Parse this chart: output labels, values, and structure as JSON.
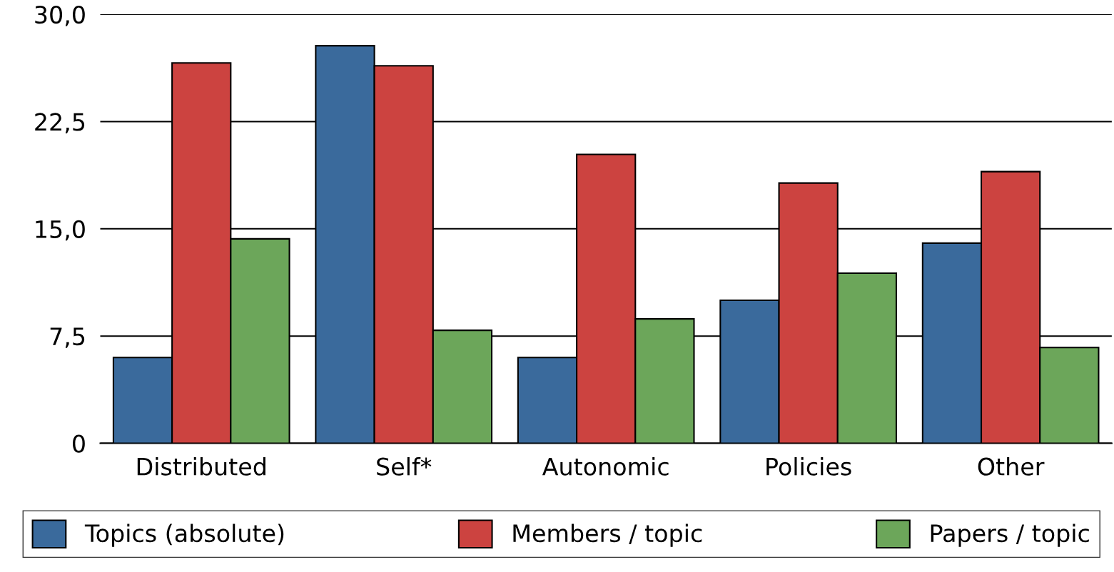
{
  "chart_data": {
    "type": "bar",
    "categories": [
      "Distributed",
      "Self*",
      "Autonomic",
      "Policies",
      "Other"
    ],
    "series": [
      {
        "name": "Topics (absolute)",
        "color": "#3a6a9c",
        "values": [
          6,
          27.8,
          6,
          10,
          14
        ]
      },
      {
        "name": "Members / topic",
        "color": "#cc4340",
        "values": [
          26.6,
          26.4,
          20.2,
          18.2,
          19.0
        ]
      },
      {
        "name": "Papers / topic",
        "color": "#6ca65a",
        "values": [
          14.3,
          7.9,
          8.7,
          11.9,
          6.7
        ]
      }
    ],
    "ylim": [
      0,
      30
    ],
    "yticks": [
      0,
      {
        "value": 7.5,
        "label": "7,5"
      },
      {
        "value": 15,
        "label": "15,0"
      },
      {
        "value": 22.5,
        "label": "22,5"
      },
      {
        "value": 30,
        "label": "30,0"
      }
    ],
    "grid": "y",
    "legend": "bottom"
  }
}
